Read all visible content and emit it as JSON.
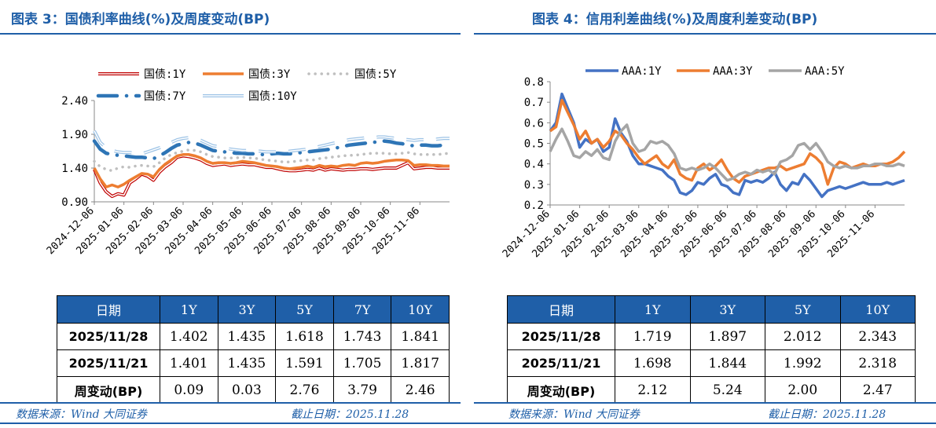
{
  "left": {
    "title": "图表 3：国债利率曲线(%)及周度变动(BP)",
    "chart_data": {
      "type": "line",
      "title": "国债利率曲线(%)",
      "ylim": [
        0.9,
        2.4
      ],
      "yticks": [
        "0.90",
        "1.40",
        "1.90",
        "2.40"
      ],
      "ytick_values": [
        0.9,
        1.4,
        1.9,
        2.4
      ],
      "x_tick_labels": [
        "2024-12-06",
        "2025-01-06",
        "2025-02-06",
        "2025-03-06",
        "2025-04-06",
        "2025-05-06",
        "2025-06-06",
        "2025-07-06",
        "2025-08-06",
        "2025-09-06",
        "2025-10-06",
        "2025-11-06"
      ],
      "n_points": 61,
      "x_tick_index": [
        0,
        5,
        10,
        15,
        20,
        25,
        30,
        35,
        40,
        45,
        50,
        55
      ],
      "series": [
        {
          "name": "国债:1Y",
          "color": "#c00000",
          "style": "double-red",
          "values": [
            1.38,
            1.18,
            1.05,
            0.98,
            1.02,
            1.0,
            1.18,
            1.24,
            1.31,
            1.28,
            1.22,
            1.34,
            1.42,
            1.48,
            1.56,
            1.58,
            1.57,
            1.55,
            1.52,
            1.47,
            1.44,
            1.45,
            1.46,
            1.44,
            1.45,
            1.46,
            1.45,
            1.45,
            1.43,
            1.41,
            1.41,
            1.39,
            1.37,
            1.36,
            1.36,
            1.37,
            1.38,
            1.37,
            1.4,
            1.37,
            1.39,
            1.38,
            1.37,
            1.38,
            1.38,
            1.39,
            1.39,
            1.38,
            1.39,
            1.4,
            1.4,
            1.4,
            1.44,
            1.48,
            1.39,
            1.4,
            1.41,
            1.41,
            1.4,
            1.4,
            1.4
          ]
        },
        {
          "name": "国债:3Y",
          "color": "#ed7d31",
          "style": "thick",
          "values": [
            1.4,
            1.24,
            1.12,
            1.15,
            1.12,
            1.16,
            1.22,
            1.27,
            1.32,
            1.31,
            1.27,
            1.38,
            1.46,
            1.52,
            1.58,
            1.6,
            1.6,
            1.58,
            1.55,
            1.5,
            1.47,
            1.48,
            1.48,
            1.47,
            1.48,
            1.5,
            1.49,
            1.48,
            1.46,
            1.44,
            1.43,
            1.42,
            1.4,
            1.39,
            1.4,
            1.41,
            1.43,
            1.41,
            1.44,
            1.42,
            1.43,
            1.42,
            1.44,
            1.45,
            1.44,
            1.47,
            1.48,
            1.47,
            1.48,
            1.5,
            1.51,
            1.52,
            1.52,
            1.51,
            1.44,
            1.45,
            1.45,
            1.44,
            1.44,
            1.43,
            1.43
          ]
        },
        {
          "name": "国债:5Y",
          "color": "#bfbfbf",
          "style": "dotted",
          "values": [
            1.5,
            1.42,
            1.38,
            1.36,
            1.4,
            1.42,
            1.41,
            1.43,
            1.44,
            1.43,
            1.42,
            1.48,
            1.55,
            1.6,
            1.63,
            1.65,
            1.67,
            1.66,
            1.64,
            1.6,
            1.57,
            1.56,
            1.55,
            1.55,
            1.55,
            1.56,
            1.55,
            1.55,
            1.53,
            1.52,
            1.51,
            1.5,
            1.49,
            1.49,
            1.5,
            1.51,
            1.52,
            1.52,
            1.54,
            1.55,
            1.56,
            1.57,
            1.58,
            1.59,
            1.59,
            1.6,
            1.61,
            1.62,
            1.62,
            1.62,
            1.61,
            1.61,
            1.62,
            1.63,
            1.61,
            1.6,
            1.6,
            1.6,
            1.6,
            1.61,
            1.62
          ]
        },
        {
          "name": "国债:7Y",
          "color": "#2e75b6",
          "style": "dashed-thick",
          "values": [
            1.8,
            1.68,
            1.62,
            1.6,
            1.59,
            1.58,
            1.57,
            1.56,
            1.56,
            1.55,
            1.54,
            1.58,
            1.63,
            1.69,
            1.74,
            1.76,
            1.78,
            1.77,
            1.74,
            1.7,
            1.66,
            1.65,
            1.64,
            1.63,
            1.62,
            1.62,
            1.61,
            1.61,
            1.6,
            1.6,
            1.61,
            1.62,
            1.61,
            1.61,
            1.62,
            1.63,
            1.64,
            1.65,
            1.66,
            1.67,
            1.68,
            1.7,
            1.72,
            1.74,
            1.75,
            1.76,
            1.77,
            1.78,
            1.79,
            1.8,
            1.79,
            1.77,
            1.76,
            1.74,
            1.73,
            1.74,
            1.74,
            1.73,
            1.73,
            1.74,
            1.75
          ]
        },
        {
          "name": "国债:10Y",
          "color": "#9dc3e6",
          "style": "double-blue",
          "values": [
            1.95,
            1.78,
            1.7,
            1.66,
            1.64,
            1.63,
            1.63,
            1.62,
            1.61,
            1.64,
            1.67,
            1.7,
            1.74,
            1.78,
            1.82,
            1.84,
            1.85,
            1.84,
            1.81,
            1.77,
            1.73,
            1.72,
            1.7,
            1.68,
            1.67,
            1.66,
            1.66,
            1.65,
            1.65,
            1.64,
            1.64,
            1.64,
            1.64,
            1.65,
            1.66,
            1.67,
            1.68,
            1.7,
            1.72,
            1.74,
            1.76,
            1.78,
            1.8,
            1.82,
            1.83,
            1.84,
            1.85,
            1.85,
            1.86,
            1.86,
            1.85,
            1.84,
            1.83,
            1.82,
            1.81,
            1.82,
            1.82,
            1.82,
            1.83,
            1.84,
            1.84
          ]
        }
      ]
    },
    "table": {
      "headers": [
        "日期",
        "1Y",
        "3Y",
        "5Y",
        "7Y",
        "10Y"
      ],
      "rows": [
        {
          "label": "2025/11/28",
          "cells": [
            "1.402",
            "1.435",
            "1.618",
            "1.743",
            "1.841"
          ]
        },
        {
          "label": "2025/11/21",
          "cells": [
            "1.401",
            "1.435",
            "1.591",
            "1.705",
            "1.817"
          ]
        },
        {
          "label": "周变动(BP)",
          "cells": [
            "0.09",
            "0.03",
            "2.76",
            "3.79",
            "2.46"
          ]
        }
      ]
    },
    "footer": {
      "source": "数据来源：Wind 大同证券",
      "date": "截止日期：2025.11.28"
    }
  },
  "right": {
    "title": "图表 4：信用利差曲线(%)及周度利差变动(BP)",
    "chart_data": {
      "type": "line",
      "title": "信用利差曲线(%)",
      "ylim": [
        0.2,
        0.8
      ],
      "yticks": [
        "0.2",
        "0.3",
        "0.4",
        "0.5",
        "0.6",
        "0.7",
        "0.8"
      ],
      "ytick_values": [
        0.2,
        0.3,
        0.4,
        0.5,
        0.6,
        0.7,
        0.8
      ],
      "x_tick_labels": [
        "2024-12-06",
        "2025-01-06",
        "2025-02-06",
        "2025-03-06",
        "2025-04-06",
        "2025-05-06",
        "2025-06-06",
        "2025-07-06",
        "2025-08-06",
        "2025-09-06",
        "2025-10-06",
        "2025-11-06"
      ],
      "n_points": 61,
      "x_tick_index": [
        0,
        5,
        10,
        15,
        20,
        25,
        30,
        35,
        40,
        45,
        50,
        55
      ],
      "series": [
        {
          "name": "AAA:1Y",
          "color": "#4472c4",
          "values": [
            0.56,
            0.6,
            0.74,
            0.67,
            0.6,
            0.48,
            0.52,
            0.5,
            0.52,
            0.46,
            0.48,
            0.62,
            0.55,
            0.51,
            0.44,
            0.4,
            0.4,
            0.39,
            0.38,
            0.37,
            0.34,
            0.32,
            0.26,
            0.25,
            0.27,
            0.31,
            0.3,
            0.33,
            0.35,
            0.3,
            0.29,
            0.26,
            0.25,
            0.32,
            0.31,
            0.32,
            0.31,
            0.33,
            0.36,
            0.3,
            0.27,
            0.31,
            0.3,
            0.35,
            0.32,
            0.28,
            0.24,
            0.27,
            0.28,
            0.29,
            0.28,
            0.29,
            0.3,
            0.31,
            0.3,
            0.3,
            0.3,
            0.31,
            0.3,
            0.31,
            0.32
          ]
        },
        {
          "name": "AAA:3Y",
          "color": "#ed7d31",
          "values": [
            0.56,
            0.58,
            0.71,
            0.65,
            0.59,
            0.52,
            0.56,
            0.5,
            0.52,
            0.48,
            0.51,
            0.56,
            0.54,
            0.5,
            0.47,
            0.43,
            0.4,
            0.42,
            0.44,
            0.4,
            0.38,
            0.42,
            0.35,
            0.33,
            0.32,
            0.38,
            0.4,
            0.37,
            0.39,
            0.42,
            0.37,
            0.33,
            0.31,
            0.34,
            0.35,
            0.36,
            0.37,
            0.38,
            0.38,
            0.39,
            0.37,
            0.38,
            0.39,
            0.4,
            0.45,
            0.43,
            0.4,
            0.3,
            0.38,
            0.41,
            0.4,
            0.38,
            0.39,
            0.4,
            0.39,
            0.39,
            0.4,
            0.4,
            0.41,
            0.43,
            0.46
          ]
        },
        {
          "name": "AAA:5Y",
          "color": "#a5a5a5",
          "values": [
            0.46,
            0.52,
            0.57,
            0.51,
            0.44,
            0.43,
            0.46,
            0.44,
            0.47,
            0.43,
            0.42,
            0.51,
            0.56,
            0.59,
            0.5,
            0.46,
            0.47,
            0.51,
            0.5,
            0.51,
            0.49,
            0.45,
            0.38,
            0.37,
            0.38,
            0.37,
            0.38,
            0.4,
            0.38,
            0.35,
            0.32,
            0.33,
            0.35,
            0.36,
            0.35,
            0.37,
            0.36,
            0.37,
            0.35,
            0.41,
            0.42,
            0.44,
            0.49,
            0.5,
            0.47,
            0.5,
            0.46,
            0.41,
            0.39,
            0.38,
            0.39,
            0.38,
            0.38,
            0.39,
            0.39,
            0.4,
            0.4,
            0.39,
            0.39,
            0.4,
            0.39
          ]
        }
      ]
    },
    "table": {
      "headers": [
        "日期",
        "1Y",
        "3Y",
        "5Y",
        "10Y"
      ],
      "rows": [
        {
          "label": "2025/11/28",
          "cells": [
            "1.719",
            "1.897",
            "2.012",
            "2.343"
          ]
        },
        {
          "label": "2025/11/21",
          "cells": [
            "1.698",
            "1.844",
            "1.992",
            "2.318"
          ]
        },
        {
          "label": "周变动(BP)",
          "cells": [
            "2.12",
            "5.24",
            "2.00",
            "2.47"
          ]
        }
      ]
    },
    "footer": {
      "source": "数据来源：Wind 大同证券",
      "date": "截止日期：2025.11.28"
    }
  }
}
